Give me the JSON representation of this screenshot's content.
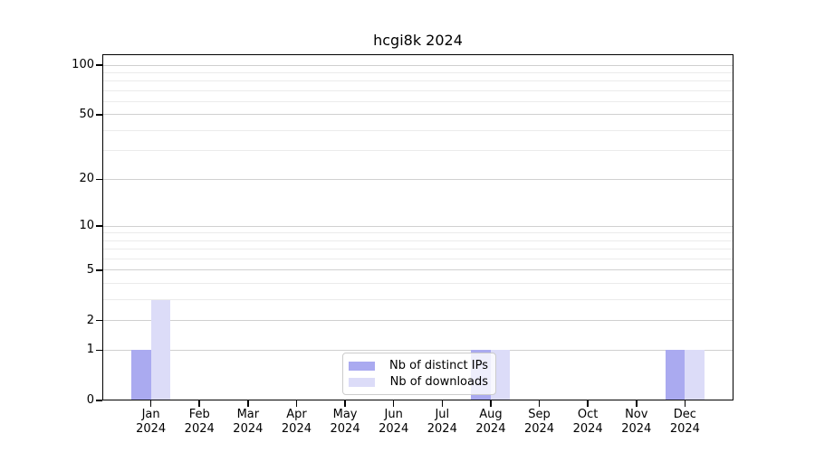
{
  "chart_data": {
    "type": "bar",
    "title": "hcgi8k 2024",
    "categories": [
      {
        "month": "Jan",
        "year": "2024"
      },
      {
        "month": "Feb",
        "year": "2024"
      },
      {
        "month": "Mar",
        "year": "2024"
      },
      {
        "month": "Apr",
        "year": "2024"
      },
      {
        "month": "May",
        "year": "2024"
      },
      {
        "month": "Jun",
        "year": "2024"
      },
      {
        "month": "Jul",
        "year": "2024"
      },
      {
        "month": "Aug",
        "year": "2024"
      },
      {
        "month": "Sep",
        "year": "2024"
      },
      {
        "month": "Oct",
        "year": "2024"
      },
      {
        "month": "Nov",
        "year": "2024"
      },
      {
        "month": "Dec",
        "year": "2024"
      }
    ],
    "series": [
      {
        "name": "Nb of distinct IPs",
        "color": "#aaaaf0",
        "values": [
          1,
          0,
          0,
          0,
          0,
          0,
          0,
          1,
          0,
          0,
          0,
          1
        ]
      },
      {
        "name": "Nb of downloads",
        "color": "#dcdcf8",
        "values": [
          3,
          0,
          0,
          0,
          0,
          0,
          0,
          1,
          0,
          0,
          0,
          1
        ]
      }
    ],
    "y_scale": "log10(1+x)",
    "y_ticks": [
      0,
      1,
      2,
      5,
      10,
      20,
      50,
      100
    ],
    "y_minor_ticks": [
      3,
      4,
      6,
      7,
      8,
      9,
      30,
      40,
      60,
      70,
      80,
      90
    ],
    "ylim": [
      0,
      117
    ],
    "grid": "horizontal",
    "legend_position": "bottom-center-inside",
    "colors": {
      "axis": "#000000",
      "grid_major": "#d0d0d0",
      "grid_minor": "#ebebeb",
      "legend_border": "#cccccc"
    }
  }
}
